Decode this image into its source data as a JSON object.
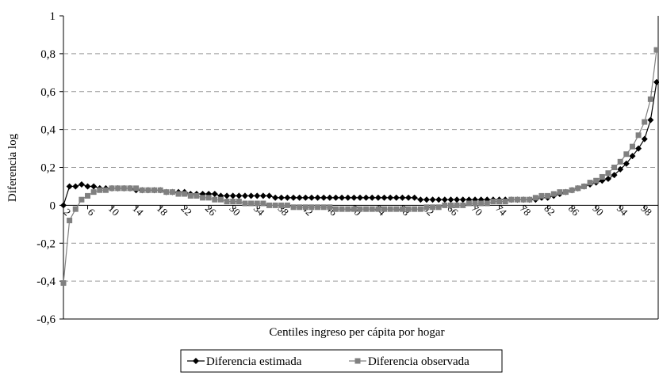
{
  "chart_data": {
    "type": "line",
    "x_label": "Centiles ingreso per cápita por hogar",
    "y_label": "Diferencia log",
    "x": [
      2,
      3,
      4,
      5,
      6,
      7,
      8,
      9,
      10,
      11,
      12,
      13,
      14,
      15,
      16,
      17,
      18,
      19,
      20,
      21,
      22,
      23,
      24,
      25,
      26,
      27,
      28,
      29,
      30,
      31,
      32,
      33,
      34,
      35,
      36,
      37,
      38,
      39,
      40,
      41,
      42,
      43,
      44,
      45,
      46,
      47,
      48,
      49,
      50,
      51,
      52,
      53,
      54,
      55,
      56,
      57,
      58,
      59,
      60,
      61,
      62,
      63,
      64,
      65,
      66,
      67,
      68,
      69,
      70,
      71,
      72,
      73,
      74,
      75,
      76,
      77,
      78,
      79,
      80,
      81,
      82,
      83,
      84,
      85,
      86,
      87,
      88,
      89,
      90,
      91,
      92,
      93,
      94,
      95,
      96,
      97,
      98,
      99,
      100
    ],
    "series": [
      {
        "name": "Diferencia estimada",
        "color": "#000000",
        "marker": "diamond",
        "values": [
          0,
          0.1,
          0.1,
          0.11,
          0.1,
          0.1,
          0.09,
          0.09,
          0.09,
          0.09,
          0.09,
          0.09,
          0.08,
          0.08,
          0.08,
          0.08,
          0.08,
          0.07,
          0.07,
          0.07,
          0.07,
          0.06,
          0.06,
          0.06,
          0.06,
          0.06,
          0.05,
          0.05,
          0.05,
          0.05,
          0.05,
          0.05,
          0.05,
          0.05,
          0.05,
          0.04,
          0.04,
          0.04,
          0.04,
          0.04,
          0.04,
          0.04,
          0.04,
          0.04,
          0.04,
          0.04,
          0.04,
          0.04,
          0.04,
          0.04,
          0.04,
          0.04,
          0.04,
          0.04,
          0.04,
          0.04,
          0.04,
          0.04,
          0.04,
          0.03,
          0.03,
          0.03,
          0.03,
          0.03,
          0.03,
          0.03,
          0.03,
          0.03,
          0.03,
          0.03,
          0.03,
          0.03,
          0.03,
          0.03,
          0.03,
          0.03,
          0.03,
          0.03,
          0.03,
          0.04,
          0.04,
          0.05,
          0.06,
          0.07,
          0.08,
          0.09,
          0.1,
          0.11,
          0.12,
          0.13,
          0.14,
          0.16,
          0.19,
          0.22,
          0.26,
          0.3,
          0.35,
          0.45,
          0.65
        ]
      },
      {
        "name": "Diferencia observada",
        "color": "#808080",
        "marker": "square",
        "values": [
          -0.41,
          -0.08,
          -0.02,
          0.03,
          0.05,
          0.07,
          0.08,
          0.08,
          0.09,
          0.09,
          0.09,
          0.09,
          0.09,
          0.08,
          0.08,
          0.08,
          0.08,
          0.07,
          0.07,
          0.06,
          0.06,
          0.05,
          0.05,
          0.04,
          0.04,
          0.03,
          0.03,
          0.02,
          0.02,
          0.02,
          0.01,
          0.01,
          0.01,
          0.01,
          0,
          0,
          0,
          0,
          -0.01,
          -0.01,
          -0.01,
          -0.01,
          -0.01,
          -0.01,
          -0.01,
          -0.02,
          -0.02,
          -0.02,
          -0.02,
          -0.02,
          -0.02,
          -0.02,
          -0.02,
          -0.02,
          -0.02,
          -0.02,
          -0.02,
          -0.02,
          -0.02,
          -0.02,
          -0.01,
          -0.01,
          -0.01,
          0,
          0,
          0,
          0,
          0.01,
          0.01,
          0.01,
          0.01,
          0.02,
          0.02,
          0.02,
          0.03,
          0.03,
          0.03,
          0.03,
          0.04,
          0.05,
          0.05,
          0.06,
          0.07,
          0.07,
          0.08,
          0.09,
          0.1,
          0.12,
          0.13,
          0.15,
          0.17,
          0.2,
          0.23,
          0.27,
          0.31,
          0.37,
          0.44,
          0.56,
          0.82
        ]
      }
    ],
    "xlim": [
      2,
      100
    ],
    "xticks": [
      2,
      6,
      10,
      14,
      18,
      22,
      26,
      30,
      34,
      38,
      42,
      46,
      50,
      54,
      58,
      62,
      66,
      70,
      74,
      78,
      82,
      86,
      90,
      94,
      98
    ],
    "ylim": [
      -0.6,
      1
    ],
    "yticks": [
      {
        "value": -0.6,
        "label": "-0,6"
      },
      {
        "value": -0.4,
        "label": "-0,4"
      },
      {
        "value": -0.2,
        "label": "-0,2"
      },
      0,
      {
        "value": 0.2,
        "label": "0,2"
      },
      {
        "value": 0.4,
        "label": "0,4"
      },
      {
        "value": 0.6,
        "label": "0,6"
      },
      {
        "value": 0.8,
        "label": "0,8"
      },
      1
    ],
    "grid": true,
    "legend": "bottom"
  }
}
